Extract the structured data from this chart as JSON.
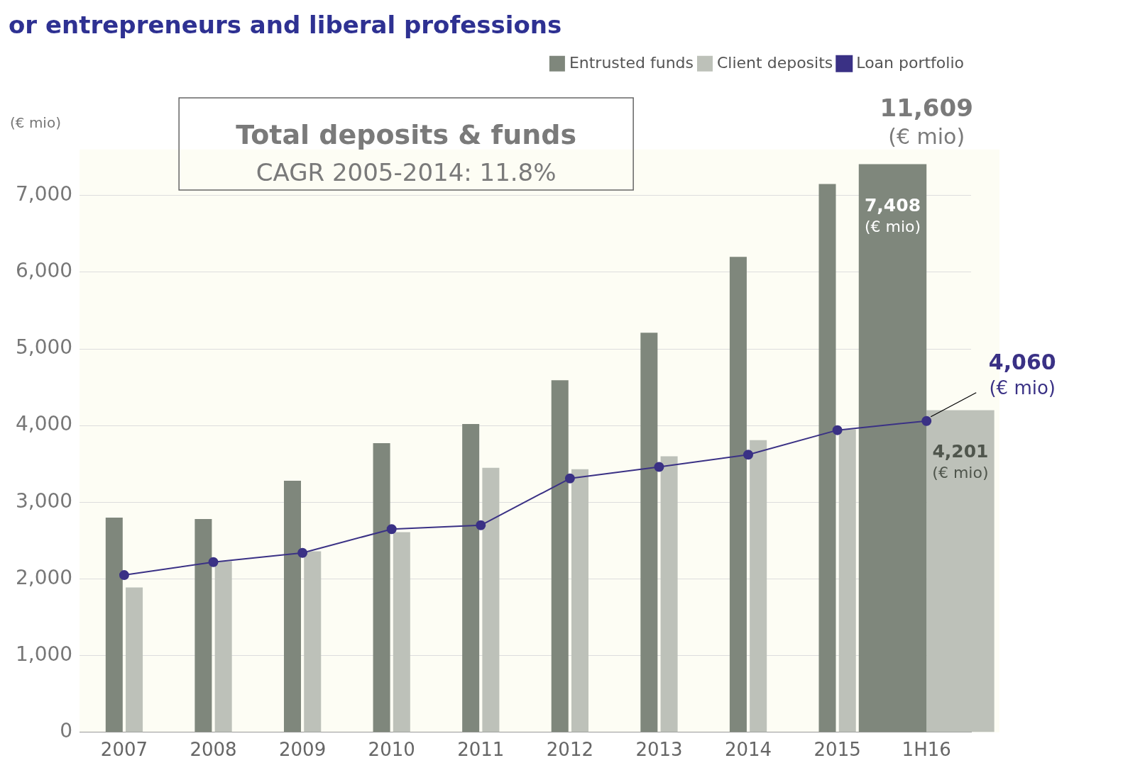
{
  "chart_data": {
    "type": "bar",
    "title": "or entrepreneurs and liberal professions",
    "ylabel": "(€ mio)",
    "categories": [
      "2007",
      "2008",
      "2009",
      "2010",
      "2011",
      "2012",
      "2013",
      "2014",
      "2015",
      "1H16"
    ],
    "series": [
      {
        "name": "Entrusted funds",
        "color": "#7f877c",
        "values": [
          2800,
          2780,
          3280,
          3770,
          4020,
          4590,
          5210,
          6200,
          7150,
          7408
        ],
        "value_labels": [
          null,
          null,
          null,
          null,
          null,
          null,
          null,
          null,
          null,
          "7,408\n(€ mio)"
        ]
      },
      {
        "name": "Client deposits",
        "color": "#bdc1b9",
        "values": [
          1890,
          2230,
          2360,
          2610,
          3450,
          3430,
          3600,
          3810,
          3950,
          4201
        ],
        "value_labels": [
          null,
          null,
          null,
          null,
          null,
          null,
          null,
          null,
          null,
          "4,201\n(€ mio)"
        ]
      },
      {
        "name": "Loan portfolio",
        "type": "line",
        "color": "#3a3185",
        "values": [
          2050,
          2220,
          2340,
          2650,
          2700,
          3310,
          3460,
          3620,
          3940,
          4060
        ],
        "value_labels": [
          null,
          null,
          null,
          null,
          null,
          null,
          null,
          null,
          null,
          "4,060\n(€ mio)"
        ]
      }
    ],
    "annotations": [
      "Total deposits & funds",
      "CAGR 2005-2014: 11.8%",
      "11,609\n(€ mio)"
    ],
    "ylim": [
      0,
      7600
    ],
    "yticks": [
      {
        "value": 0,
        "label": "0"
      },
      {
        "value": 1000,
        "label": "1,000"
      },
      {
        "value": 2000,
        "label": "2,000"
      },
      {
        "value": 3000,
        "label": "3,000"
      },
      {
        "value": 4000,
        "label": "4,000"
      },
      {
        "value": 5000,
        "label": "5,000"
      },
      {
        "value": 6000,
        "label": "6,000"
      },
      {
        "value": 7000,
        "label": "7,000"
      }
    ],
    "grid": "y",
    "legend": "top right",
    "marker": "circle",
    "line_style": "solid"
  }
}
